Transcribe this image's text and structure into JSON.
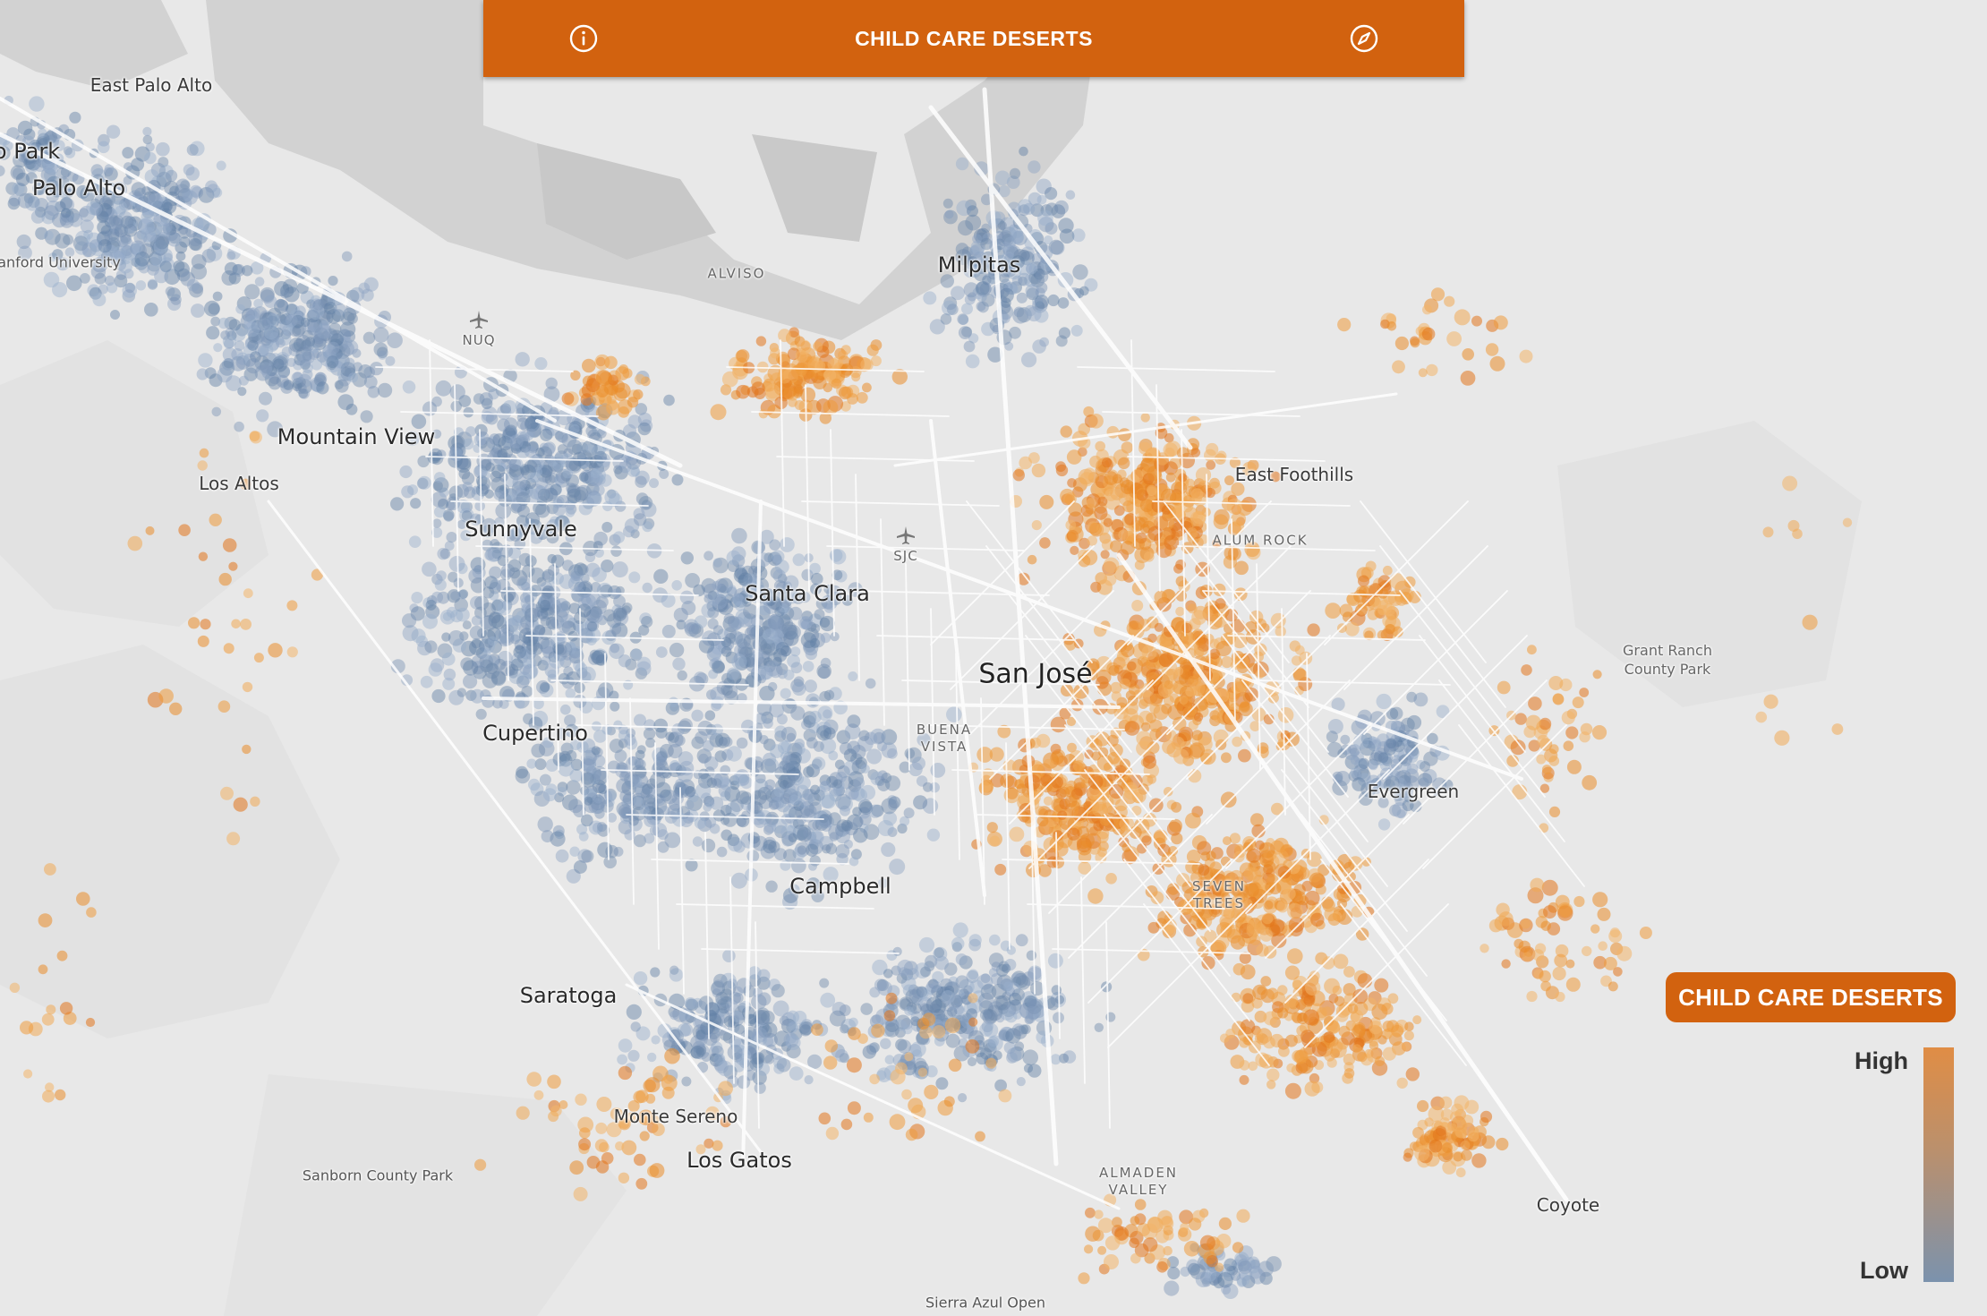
{
  "header": {
    "title": "CHILD CARE DESERTS",
    "info_icon": "info-icon",
    "compass_icon": "compass-icon",
    "color": "#d2620f"
  },
  "legend": {
    "title": "CHILD CARE DESERTS",
    "high_label": "High",
    "low_label": "Low",
    "high_color": "#e08d45",
    "low_color": "#7b92ad"
  },
  "map": {
    "background_color": "#e8e8e8",
    "water_color": "#cfcfcf",
    "road_color": "#ffffff",
    "places": {
      "east_palo_alto": "East Palo Alto",
      "menlo_park": "o Park",
      "palo_alto": "Palo Alto",
      "stanford": "anford University",
      "alviso": "ALVISO",
      "milpitas": "Milpitas",
      "nuq": "NUQ",
      "mountain_view": "Mountain View",
      "los_altos": "Los Altos",
      "sunnyvale": "Sunnyvale",
      "east_foothills": "East Foothills",
      "alum_rock": "ALUM ROCK",
      "sjc": "SJC",
      "santa_clara": "Santa Clara",
      "grant_ranch": "Grant Ranch\nCounty Park",
      "san_jose": "San José",
      "buena_vista": "BUENA\nVISTA",
      "cupertino": "Cupertino",
      "evergreen": "Evergreen",
      "campbell": "Campbell",
      "seven_trees": "SEVEN\nTREES",
      "saratoga": "Saratoga",
      "monte_sereno": "Monte Sereno",
      "los_gatos": "Los Gatos",
      "sanborn": "Sanborn County Park",
      "almaden_valley": "ALMADEN\nVALLEY",
      "coyote": "Coyote",
      "sierra_azul": "Sierra Azul Open"
    }
  }
}
